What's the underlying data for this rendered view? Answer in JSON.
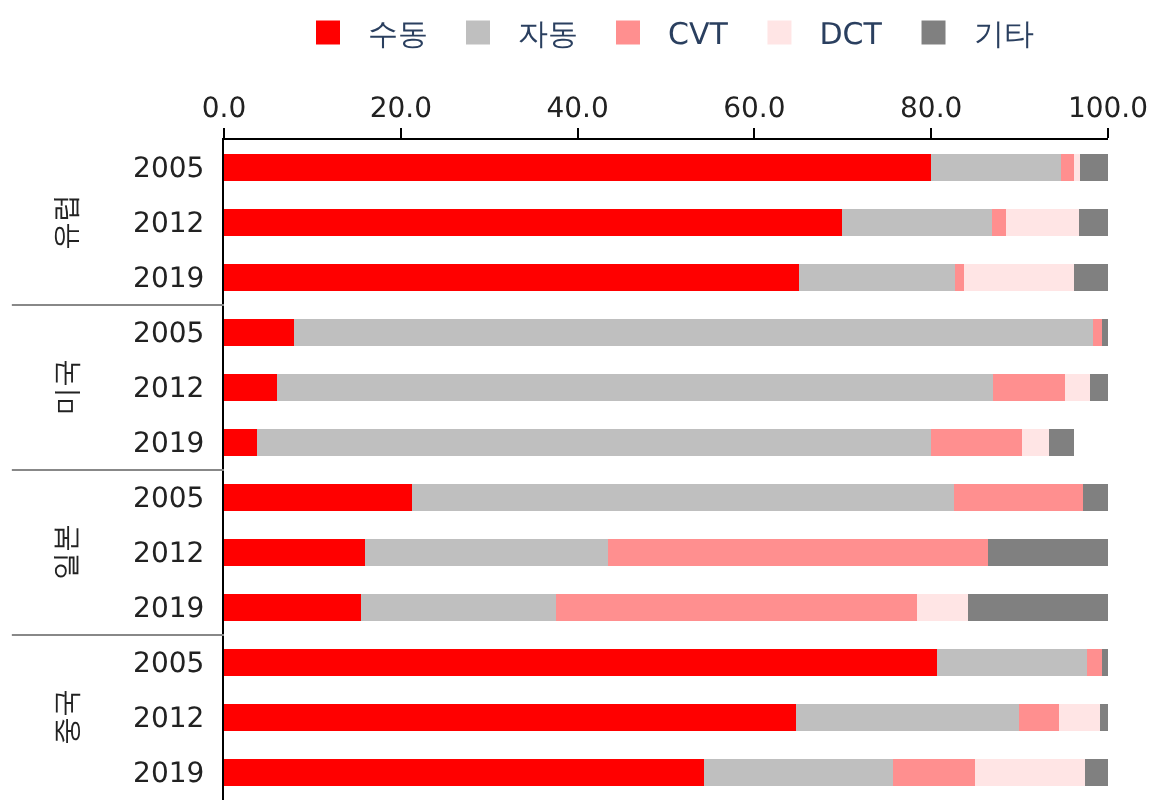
{
  "chart_data": {
    "type": "bar",
    "orientation": "horizontal",
    "stacked": true,
    "categories": [
      "2005",
      "2012",
      "2019",
      "2005",
      "2012",
      "2019",
      "2005",
      "2012",
      "2019",
      "2005",
      "2012",
      "2019"
    ],
    "annotations": [
      "유럽",
      "미국",
      "일본",
      "중국"
    ],
    "series": [
      {
        "name": "수동",
        "color": "#ff0000",
        "values": [
          80.0,
          69.9,
          65.0,
          7.9,
          6.0,
          3.7,
          21.3,
          15.9,
          15.5,
          80.6,
          64.7,
          54.3
        ]
      },
      {
        "name": "자동",
        "color": "#bfbfbf",
        "values": [
          14.7,
          17.0,
          17.7,
          90.4,
          81.0,
          76.3,
          61.3,
          27.5,
          22.0,
          17.0,
          25.2,
          21.4
        ]
      },
      {
        "name": "CVT",
        "color": "#ff8f8f",
        "values": [
          1.5,
          1.6,
          1.0,
          1.0,
          8.1,
          10.3,
          14.6,
          43.0,
          40.9,
          1.7,
          4.6,
          9.3
        ]
      },
      {
        "name": "DCT",
        "color": "#ffe5e5",
        "values": [
          0.6,
          8.2,
          12.5,
          0,
          2.9,
          3.0,
          0,
          0,
          5.8,
          0,
          4.6,
          12.4
        ]
      },
      {
        "name": "기타",
        "color": "#808080",
        "values": [
          3.2,
          3.3,
          3.8,
          0.7,
          2.0,
          2.8,
          2.8,
          13.6,
          15.8,
          0.7,
          0.9,
          2.6
        ]
      }
    ],
    "xlim": [
      0,
      100
    ],
    "xticks": [
      {
        "value": 0,
        "label": "0.0"
      },
      {
        "value": 20,
        "label": "20.0"
      },
      {
        "value": 40,
        "label": "40.0"
      },
      {
        "value": 60,
        "label": "60.0"
      },
      {
        "value": 80,
        "label": "80.0"
      },
      {
        "value": 100,
        "label": "100.0"
      }
    ],
    "legend": "top"
  }
}
